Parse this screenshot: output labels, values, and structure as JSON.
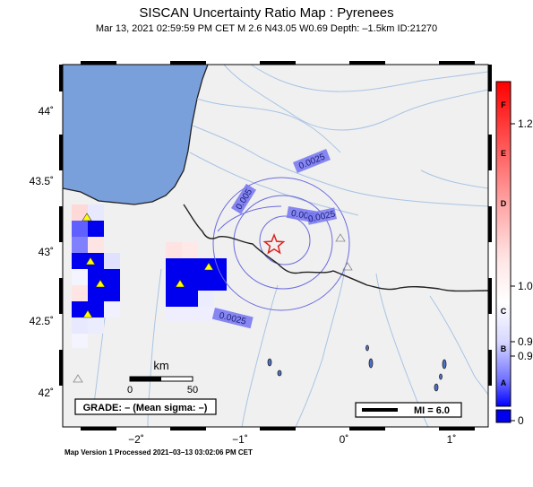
{
  "title": "SISCAN Uncertainty Ratio Map : Pyrenees",
  "subtitle": "Mar 13, 2021 02:59:59 PM CET   M 2.6    N43.05 W0.69   Depth: –1.5km   ID:21270",
  "footer": "Map Version 1 Processed 2021–03–13 03:02:06 PM CET",
  "colors": {
    "sea": "#7aa0dc",
    "land": "#f0f0f0",
    "cell_blue": "#0000ee",
    "epicenter": "#e02020",
    "contour": "#6a6ae0"
  },
  "map": {
    "lat_labels": [
      "44˚",
      "43.5˚",
      "43˚",
      "42.5˚",
      "42˚"
    ],
    "lon_labels": [
      "−2˚",
      "−1˚",
      "0˚",
      "1˚"
    ],
    "contour_labels": [
      "0.0025",
      "0.005",
      "0.0025",
      "0.005",
      "0.0025"
    ],
    "scale_bar": {
      "unit": "km",
      "ticks": [
        "0",
        "50"
      ]
    },
    "grade_box": "GRADE: – (Mean sigma: –)",
    "mi_box": "MI = 6.0",
    "epicenter_icon": "star-icon",
    "station_icon": "triangle-icon"
  },
  "colorbar": {
    "letters": [
      "F",
      "E",
      "D",
      "C",
      "B",
      "A"
    ],
    "values": [
      "1.2",
      "1.0",
      "0.9",
      "0.9",
      "0"
    ]
  }
}
